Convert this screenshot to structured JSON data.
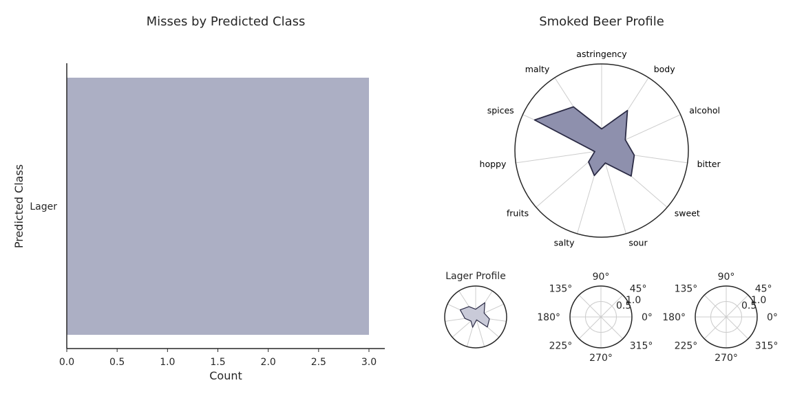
{
  "colors": {
    "bar": "#acafc4",
    "radar_fill": "#8e90ad",
    "radar_edge": "#2b2b45",
    "small_fill": "#c9cad8",
    "axis": "#262626",
    "grid": "#cccccc"
  },
  "chart_data": [
    {
      "type": "bar",
      "orientation": "horizontal",
      "title": "Misses by Predicted Class",
      "xlabel": "Count",
      "ylabel": "Predicted Class",
      "categories": [
        "Lager"
      ],
      "values": [
        3
      ],
      "xlim": [
        0,
        3.15
      ],
      "xticks": [
        "0.0",
        "0.5",
        "1.0",
        "1.5",
        "2.0",
        "2.5",
        "3.0"
      ],
      "grid": false
    },
    {
      "type": "radar",
      "title": "Smoked Beer Profile",
      "axes": [
        "astringency",
        "body",
        "alcohol",
        "bitter",
        "sweet",
        "sour",
        "salty",
        "fruits",
        "hoppy",
        "spices",
        "malty"
      ],
      "values": [
        0.25,
        0.55,
        0.3,
        0.38,
        0.45,
        0.15,
        0.3,
        0.2,
        0.08,
        0.85,
        0.6
      ],
      "rlim": [
        0,
        1
      ]
    },
    {
      "type": "radar",
      "title": "Lager Profile",
      "axes": [
        "astringency",
        "body",
        "alcohol",
        "bitter",
        "sweet",
        "sour",
        "salty",
        "fruits",
        "hoppy",
        "spices",
        "malty"
      ],
      "values": [
        0.25,
        0.55,
        0.3,
        0.45,
        0.5,
        0.1,
        0.35,
        0.2,
        0.35,
        0.55,
        0.4
      ],
      "rlim": [
        0,
        1
      ]
    },
    {
      "type": "radar",
      "title": "",
      "angle_labels": [
        "0°",
        "45°",
        "90°",
        "135°",
        "180°",
        "225°",
        "270°",
        "315°"
      ],
      "radial_labels": [
        "0.5",
        "1.0"
      ]
    },
    {
      "type": "radar",
      "title": "",
      "angle_labels": [
        "0°",
        "45°",
        "90°",
        "135°",
        "180°",
        "225°",
        "270°",
        "315°"
      ],
      "radial_labels": [
        "0.5",
        "1.0"
      ]
    }
  ]
}
